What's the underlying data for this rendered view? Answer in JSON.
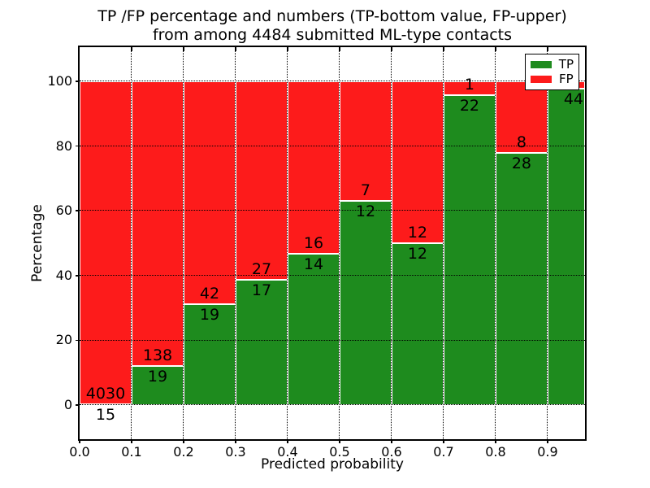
{
  "title": {
    "line1": "TP /FP percentage and numbers (TP-bottom value, FP-upper)",
    "line2": "from among 4484 submitted ML-type contacts"
  },
  "axes": {
    "xlabel": "Predicted probability",
    "ylabel": "Percentage",
    "xtick_labels": [
      "0.0",
      "0.1",
      "0.2",
      "0.3",
      "0.4",
      "0.5",
      "0.6",
      "0.7",
      "0.8",
      "0.9"
    ],
    "ytick_labels": [
      "0",
      "20",
      "40",
      "60",
      "80",
      "100"
    ],
    "ytick_values": [
      0,
      20,
      40,
      60,
      80,
      100
    ]
  },
  "legend": {
    "items": [
      {
        "label": "TP",
        "color": "#1e8b1e"
      },
      {
        "label": "FP",
        "color": "#fd1b1b"
      }
    ]
  },
  "colors": {
    "tp_green": "#1e8b1e",
    "fp_red": "#fd1b1b",
    "bar_edge": "#ffffff",
    "grid": "#000000",
    "background": "#ffffff"
  },
  "chart_data": {
    "type": "bar",
    "stacked": true,
    "normalized": "each bin scaled to 100%",
    "title": "TP /FP percentage and numbers (TP-bottom value, FP-upper) from among 4484 submitted ML-type contacts",
    "xlabel": "Predicted probability",
    "ylabel": "Percentage",
    "total_contacts": 4484,
    "bin_width": 0.1,
    "categories": [
      "0.0-0.1",
      "0.1-0.2",
      "0.2-0.3",
      "0.3-0.4",
      "0.4-0.5",
      "0.5-0.6",
      "0.6-0.7",
      "0.7-0.8",
      "0.8-0.9",
      "0.9-1.0"
    ],
    "series": [
      {
        "name": "TP",
        "color": "#1e8b1e",
        "counts": [
          15,
          19,
          19,
          17,
          14,
          12,
          12,
          22,
          28,
          44
        ]
      },
      {
        "name": "FP",
        "color": "#fd1b1b",
        "counts": [
          4030,
          138,
          42,
          27,
          16,
          7,
          12,
          1,
          8,
          1
        ]
      }
    ],
    "tp_percent_of_bin": [
      0.37,
      12.1,
      31.15,
      38.64,
      46.67,
      63.16,
      50.0,
      95.65,
      77.78,
      97.78
    ],
    "bar_label_rule": "FP count printed above green/red boundary, TP count printed below it",
    "xlim": [
      0.0,
      0.972
    ],
    "ylim": [
      -10.55,
      110.55
    ],
    "grid": true,
    "grid_style": "dotted",
    "legend_position": "upper right"
  }
}
